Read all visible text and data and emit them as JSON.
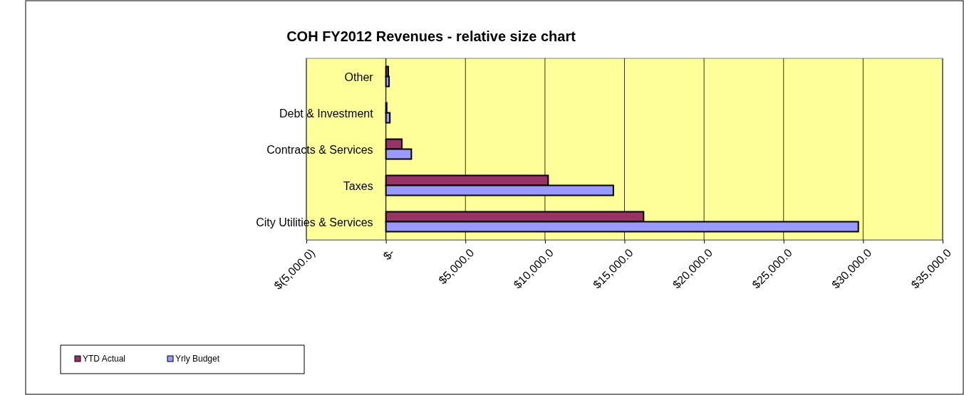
{
  "chart_data": {
    "type": "bar",
    "orientation": "horizontal",
    "title": "COH FY2012 Revenues - relative size chart",
    "categories": [
      "Other",
      "Debt & Investment",
      "Contracts & Services",
      "Taxes",
      "City Utilities & Services"
    ],
    "series": [
      {
        "name": "YTD Actual",
        "color": "#993366",
        "values": [
          150,
          50,
          1000,
          10200,
          16200
        ]
      },
      {
        "name": "Yrly Budget",
        "color": "#9999ff",
        "values": [
          200,
          250,
          1600,
          14300,
          29700
        ]
      }
    ],
    "xlim": [
      -5000,
      35000
    ],
    "xticks": [
      {
        "value": -5000,
        "label": "$(5,000.0)"
      },
      {
        "value": 0,
        "label": "$-"
      },
      {
        "value": 5000,
        "label": "$5,000.0"
      },
      {
        "value": 10000,
        "label": "$10,000.0"
      },
      {
        "value": 15000,
        "label": "$15,000.0"
      },
      {
        "value": 20000,
        "label": "$20,000.0"
      },
      {
        "value": 25000,
        "label": "$25,000.0"
      },
      {
        "value": 30000,
        "label": "$30,000.0"
      },
      {
        "value": 35000,
        "label": "$35,000.0"
      }
    ],
    "grid": "x",
    "legend": "bottom left"
  }
}
